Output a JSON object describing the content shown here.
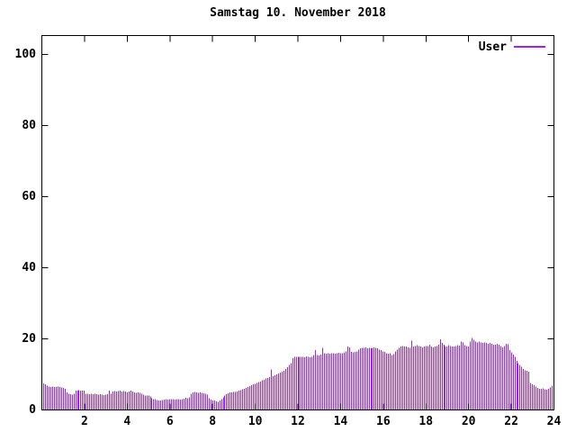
{
  "title": "Samstag 10. November 2018",
  "legend": {
    "label": "User",
    "position": "top-right"
  },
  "colors": {
    "series": "#a020f0",
    "frame": "#000000",
    "background": "#ffffff",
    "text": "#000000"
  },
  "chart_data": {
    "type": "bar",
    "style": "impulses",
    "title": "Samstag 10. November 2018",
    "xlabel": "",
    "ylabel": "",
    "xlim": [
      0,
      24
    ],
    "ylim": [
      0,
      105
    ],
    "x_ticks": [
      2,
      4,
      6,
      8,
      10,
      12,
      14,
      16,
      18,
      20,
      22,
      24
    ],
    "y_ticks": [
      0,
      20,
      40,
      60,
      80,
      100
    ],
    "x_unit": "hour-of-day",
    "sample_interval_minutes": 5,
    "grid": false,
    "legend_position": "top-right",
    "series": [
      {
        "name": "User",
        "color": "#a020f0",
        "values": [
          7.5,
          7.2,
          6.8,
          6.6,
          6.5,
          6.6,
          6.4,
          6.5,
          6.6,
          6.4,
          6.3,
          6.2,
          6.0,
          5.0,
          4.6,
          4.4,
          4.3,
          4.5,
          5.4,
          5.5,
          5.6,
          5.5,
          5.4,
          5.5,
          4.6,
          4.5,
          4.4,
          4.5,
          4.4,
          4.5,
          4.4,
          4.3,
          4.4,
          4.3,
          4.2,
          4.3,
          4.4,
          5.4,
          4.6,
          5.2,
          5.3,
          5.2,
          5.3,
          5.4,
          5.2,
          5.3,
          5.2,
          5.0,
          5.2,
          5.4,
          5.2,
          4.9,
          4.8,
          4.9,
          4.8,
          4.6,
          4.3,
          4.1,
          4.0,
          4.1,
          3.8,
          3.3,
          3.1,
          3.0,
          2.8,
          2.7,
          2.6,
          2.8,
          2.9,
          3.0,
          2.9,
          3.1,
          3.0,
          3.1,
          2.9,
          3.1,
          3.0,
          2.9,
          3.1,
          3.2,
          3.4,
          3.3,
          3.6,
          4.6,
          5.0,
          5.1,
          4.9,
          4.8,
          4.9,
          4.8,
          4.7,
          4.6,
          4.3,
          3.3,
          2.9,
          2.7,
          2.6,
          2.4,
          2.3,
          2.6,
          3.0,
          3.5,
          4.0,
          4.4,
          4.7,
          4.9,
          5.0,
          5.1,
          5.1,
          5.2,
          5.4,
          5.6,
          5.8,
          6.0,
          6.2,
          6.5,
          6.7,
          7.0,
          7.2,
          7.4,
          7.6,
          7.8,
          8.0,
          8.3,
          8.5,
          8.8,
          9.0,
          9.3,
          11.4,
          9.5,
          9.8,
          10.0,
          10.2,
          10.5,
          10.8,
          11.0,
          11.5,
          12.0,
          12.6,
          13.2,
          14.6,
          14.9,
          15.0,
          14.9,
          15.0,
          14.9,
          15.0,
          14.8,
          15.1,
          15.0,
          14.8,
          14.9,
          15.5,
          16.8,
          15.4,
          15.3,
          15.6,
          17.5,
          15.9,
          15.8,
          16.0,
          15.8,
          15.9,
          16.0,
          15.8,
          16.0,
          16.1,
          16.0,
          16.0,
          16.2,
          16.5,
          17.8,
          17.6,
          16.3,
          16.2,
          16.3,
          16.5,
          17.0,
          17.3,
          17.5,
          17.5,
          17.6,
          17.4,
          17.5,
          17.4,
          17.5,
          17.6,
          17.5,
          17.3,
          17.0,
          16.8,
          16.5,
          16.3,
          16.0,
          15.8,
          16.0,
          15.5,
          15.7,
          16.5,
          17.0,
          17.5,
          17.8,
          18.0,
          17.8,
          17.8,
          17.6,
          17.5,
          19.5,
          17.8,
          18.0,
          18.2,
          18.0,
          17.8,
          17.6,
          17.8,
          18.0,
          18.0,
          18.3,
          17.8,
          17.6,
          17.8,
          18.0,
          18.4,
          19.9,
          18.8,
          18.3,
          18.0,
          17.9,
          18.2,
          18.0,
          17.9,
          17.8,
          18.0,
          18.2,
          18.1,
          19.2,
          19.0,
          18.2,
          18.0,
          17.9,
          19.3,
          20.2,
          19.8,
          19.2,
          19.0,
          19.2,
          19.0,
          18.8,
          19.0,
          18.8,
          18.6,
          18.8,
          18.6,
          18.4,
          18.3,
          18.6,
          18.4,
          18.0,
          17.6,
          18.0,
          18.6,
          18.5,
          16.8,
          16.2,
          15.6,
          15.0,
          13.8,
          13.2,
          12.6,
          12.2,
          11.5,
          11.2,
          11.0,
          10.8,
          7.6,
          7.2,
          6.9,
          6.6,
          6.2,
          5.9,
          6.0,
          6.1,
          5.8,
          5.7,
          6.0,
          6.3,
          6.8,
          7.3
        ]
      }
    ]
  }
}
